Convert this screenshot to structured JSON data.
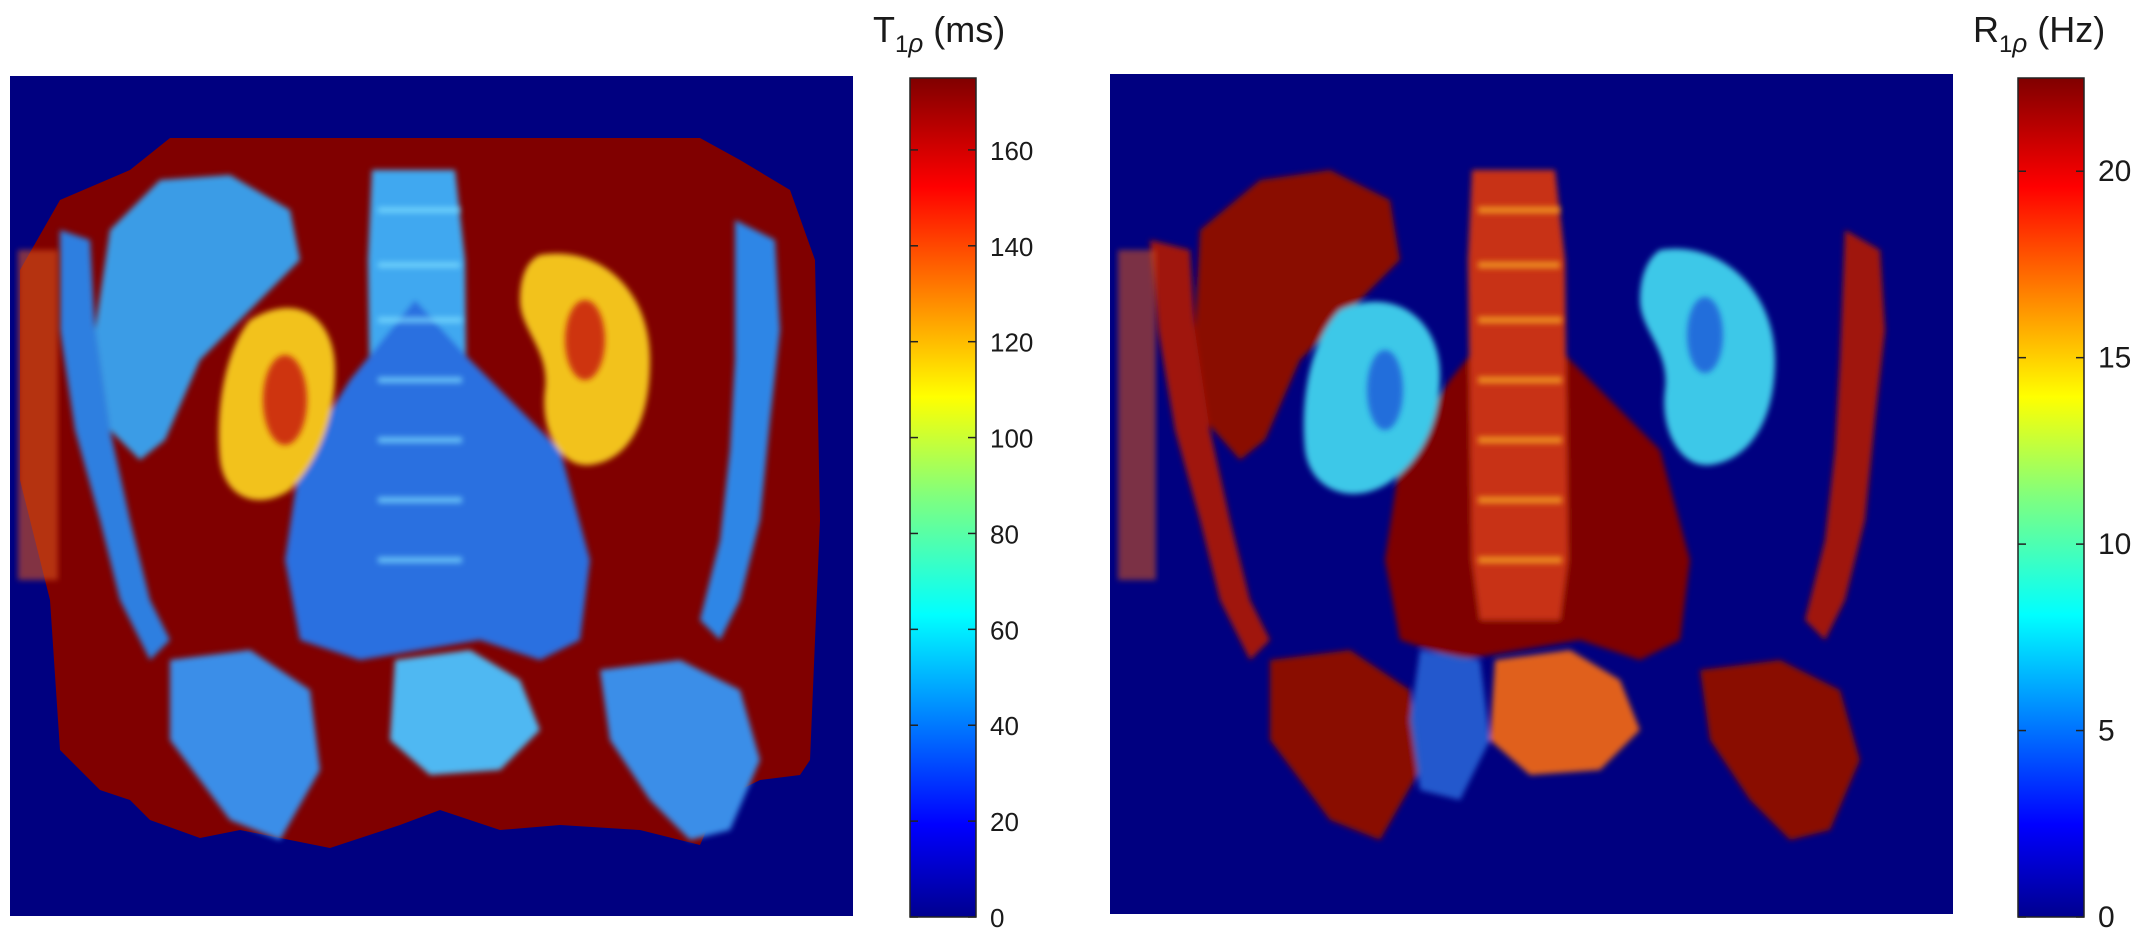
{
  "figure": {
    "panels": [
      {
        "id": "left",
        "map_name": "T1rho map",
        "colorbar": {
          "label_main": "T",
          "label_sub": "1",
          "label_greek": "ρ",
          "label_unit": " (ms)",
          "ticks": [
            "0",
            "20",
            "40",
            "60",
            "80",
            "100",
            "120",
            "140",
            "160"
          ],
          "range": [
            0,
            175
          ]
        }
      },
      {
        "id": "right",
        "map_name": "R1rho map",
        "colorbar": {
          "label_main": "R",
          "label_sub": "1",
          "label_greek": "ρ",
          "label_unit": " (Hz)",
          "ticks": [
            "0",
            "5",
            "10",
            "15",
            "20"
          ],
          "range": [
            0,
            22.5
          ]
        }
      }
    ],
    "colors": {
      "background": "#000080",
      "dark_red": "#800000",
      "colormap": "jet"
    }
  }
}
